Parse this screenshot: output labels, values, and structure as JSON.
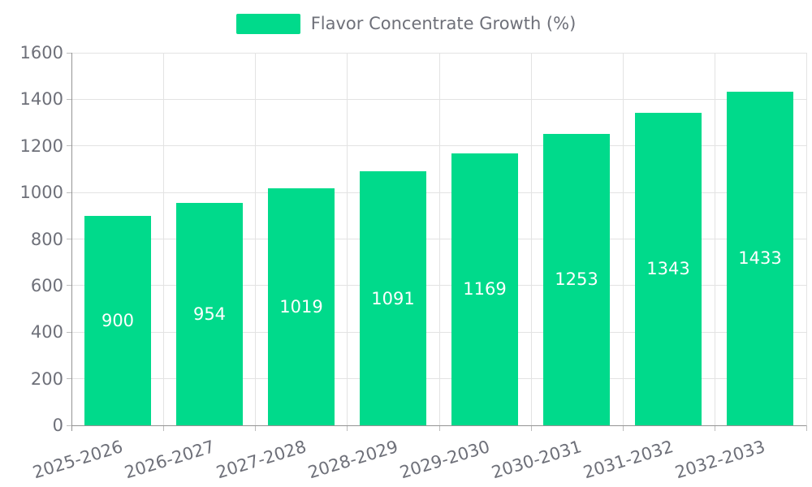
{
  "chart_data": {
    "type": "bar",
    "title": "",
    "legend": "Flavor Concentrate Growth (%)",
    "legend_position": "top",
    "categories": [
      "2025-2026",
      "2026-2027",
      "2027-2028",
      "2028-2029",
      "2029-2030",
      "2030-2031",
      "2031-2032",
      "2032-2033"
    ],
    "values": [
      900,
      954,
      1019,
      1091,
      1169,
      1253,
      1343,
      1433
    ],
    "xlabel": "",
    "ylabel": "",
    "ylim": [
      0,
      1600
    ],
    "yticks": [
      0,
      200,
      400,
      600,
      800,
      1000,
      1200,
      1400,
      1600
    ],
    "grid": true,
    "value_labels_inside_bars": true,
    "colors": {
      "bar": "#00da8b",
      "bar_value_text": "#ffffff",
      "axis_text": "#6e7079",
      "legend_text": "#6e7079",
      "gridline": "#e3e3e3",
      "axis_line": "#949494",
      "tick": "#bdbdbd"
    }
  }
}
